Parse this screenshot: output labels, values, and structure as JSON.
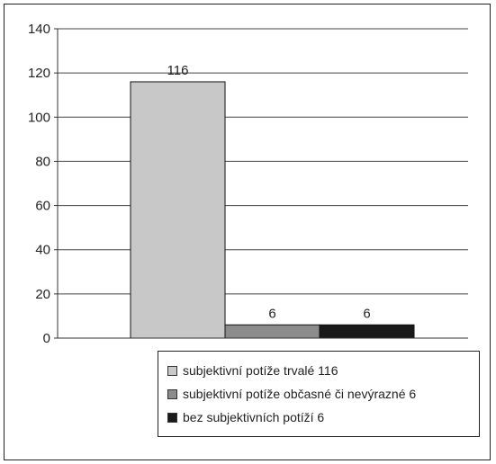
{
  "chart_data": {
    "type": "bar",
    "title": "",
    "xlabel": "",
    "ylabel": "",
    "ylim": [
      0,
      140
    ],
    "yticks": [
      0,
      20,
      40,
      60,
      80,
      100,
      120,
      140
    ],
    "grid": true,
    "legend_position": "bottom-right",
    "series": [
      {
        "name": "subjektivní potíže trvalé 116",
        "value": 116,
        "data_label": "116",
        "color": "#c8c8c8"
      },
      {
        "name": "subjektivní potíže občasné či nevýrazné 6",
        "value": 6,
        "data_label": "6",
        "color": "#8c8c8c"
      },
      {
        "name": "bez subjektivních potíží 6",
        "value": 6,
        "data_label": "6",
        "color": "#1a1a1a"
      }
    ]
  }
}
